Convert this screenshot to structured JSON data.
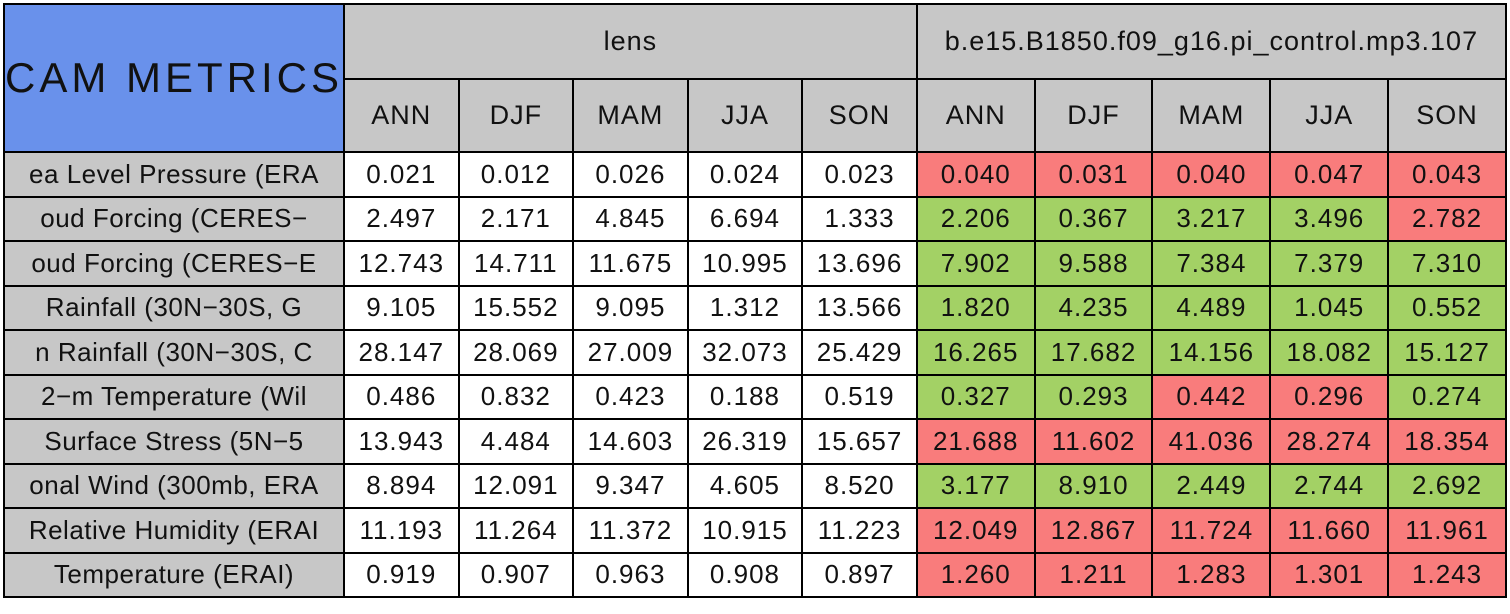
{
  "title": "CAM METRICS",
  "colors": {
    "title_bg": "#6991eb",
    "header_bg": "#c7c7c7",
    "lens_bg": "#ffffff",
    "better_bg": "#a3d165",
    "worse_bg": "#f97c7c",
    "border": "#000000",
    "text": "#111111"
  },
  "groups": [
    {
      "label": "lens"
    },
    {
      "label": "b.e15.B1850.f09_g16.pi_control.mp3.107"
    }
  ],
  "seasons": [
    "ANN",
    "DJF",
    "MAM",
    "JJA",
    "SON"
  ],
  "chart_data": {
    "type": "table",
    "title": "CAM METRICS",
    "column_groups": [
      "lens",
      "b.e15.B1850.f09_g16.pi_control.mp3.107"
    ],
    "columns": [
      "ANN",
      "DJF",
      "MAM",
      "JJA",
      "SON"
    ],
    "legend_note_colors": {
      "better": "#a3d165",
      "worse": "#f97c7c"
    },
    "rows": [
      {
        "label": "ea Level Pressure (ERA",
        "lens": [
          "0.021",
          "0.012",
          "0.026",
          "0.024",
          "0.023"
        ],
        "control": [
          "0.040",
          "0.031",
          "0.040",
          "0.047",
          "0.043"
        ],
        "control_status": [
          "worse",
          "worse",
          "worse",
          "worse",
          "worse"
        ]
      },
      {
        "label": "oud Forcing (CERES−",
        "lens": [
          "2.497",
          "2.171",
          "4.845",
          "6.694",
          "1.333"
        ],
        "control": [
          "2.206",
          "0.367",
          "3.217",
          "3.496",
          "2.782"
        ],
        "control_status": [
          "better",
          "better",
          "better",
          "better",
          "worse"
        ]
      },
      {
        "label": "oud Forcing (CERES−E",
        "lens": [
          "12.743",
          "14.711",
          "11.675",
          "10.995",
          "13.696"
        ],
        "control": [
          "7.902",
          "9.588",
          "7.384",
          "7.379",
          "7.310"
        ],
        "control_status": [
          "better",
          "better",
          "better",
          "better",
          "better"
        ]
      },
      {
        "label": "Rainfall (30N−30S, G",
        "lens": [
          "9.105",
          "15.552",
          "9.095",
          "1.312",
          "13.566"
        ],
        "control": [
          "1.820",
          "4.235",
          "4.489",
          "1.045",
          "0.552"
        ],
        "control_status": [
          "better",
          "better",
          "better",
          "better",
          "better"
        ]
      },
      {
        "label": "n Rainfall (30N−30S, C",
        "lens": [
          "28.147",
          "28.069",
          "27.009",
          "32.073",
          "25.429"
        ],
        "control": [
          "16.265",
          "17.682",
          "14.156",
          "18.082",
          "15.127"
        ],
        "control_status": [
          "better",
          "better",
          "better",
          "better",
          "better"
        ]
      },
      {
        "label": "2−m Temperature (Wil",
        "lens": [
          "0.486",
          "0.832",
          "0.423",
          "0.188",
          "0.519"
        ],
        "control": [
          "0.327",
          "0.293",
          "0.442",
          "0.296",
          "0.274"
        ],
        "control_status": [
          "better",
          "better",
          "worse",
          "worse",
          "better"
        ]
      },
      {
        "label": "Surface Stress (5N−5",
        "lens": [
          "13.943",
          "4.484",
          "14.603",
          "26.319",
          "15.657"
        ],
        "control": [
          "21.688",
          "11.602",
          "41.036",
          "28.274",
          "18.354"
        ],
        "control_status": [
          "worse",
          "worse",
          "worse",
          "worse",
          "worse"
        ]
      },
      {
        "label": "onal Wind (300mb, ERA",
        "lens": [
          "8.894",
          "12.091",
          "9.347",
          "4.605",
          "8.520"
        ],
        "control": [
          "3.177",
          "8.910",
          "2.449",
          "2.744",
          "2.692"
        ],
        "control_status": [
          "better",
          "better",
          "better",
          "better",
          "better"
        ]
      },
      {
        "label": "Relative Humidity (ERAI",
        "lens": [
          "11.193",
          "11.264",
          "11.372",
          "10.915",
          "11.223"
        ],
        "control": [
          "12.049",
          "12.867",
          "11.724",
          "11.660",
          "11.961"
        ],
        "control_status": [
          "worse",
          "worse",
          "worse",
          "worse",
          "worse"
        ]
      },
      {
        "label": "Temperature (ERAI)",
        "lens": [
          "0.919",
          "0.907",
          "0.963",
          "0.908",
          "0.897"
        ],
        "control": [
          "1.260",
          "1.211",
          "1.283",
          "1.301",
          "1.243"
        ],
        "control_status": [
          "worse",
          "worse",
          "worse",
          "worse",
          "worse"
        ]
      }
    ]
  }
}
